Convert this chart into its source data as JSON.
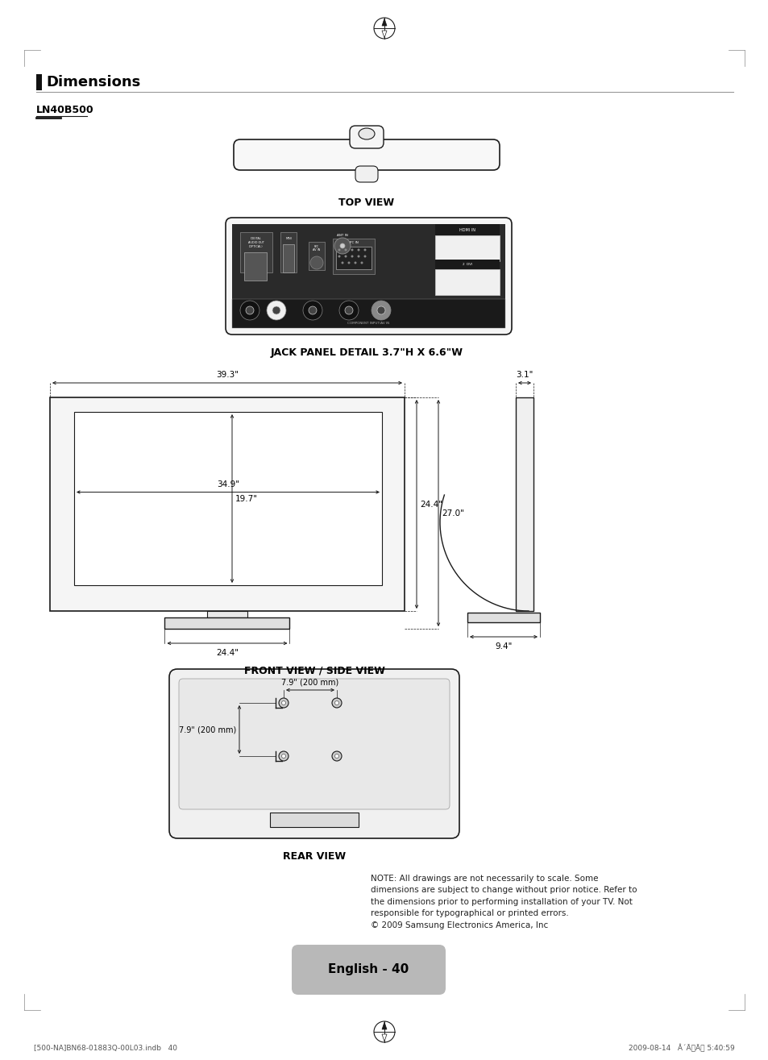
{
  "bg_color": "#ffffff",
  "title": "Dimensions",
  "subtitle": "LN40B500",
  "page_label": "English - 40",
  "footer_left": "[500-NA]BN68-01883Q-00L03.indb   40",
  "footer_right": "2009-08-14   Â´ÃÃ 5:40:59",
  "jack_panel_label": "JACK PANEL DETAIL 3.7\"H X 6.6\"W",
  "front_side_label": "FRONT VIEW / SIDE VIEW",
  "rear_label": "REAR VIEW",
  "top_label": "TOP VIEW",
  "note_text": "NOTE: All drawings are not necessarily to scale. Some\ndimensions are subject to change without prior notice. Refer to\nthe dimensions prior to performing installation of your TV. Not\nresponsible for typographical or printed errors.\n© 2009 Samsung Electronics America, Inc",
  "dims": {
    "total_width": "39.3\"",
    "screen_width": "34.9\"",
    "screen_height": "19.7\"",
    "panel_height_inner": "24.4\"",
    "panel_height_outer": "27.0\"",
    "base_width": "24.4\"",
    "depth": "3.1\"",
    "base_depth": "9.4\"",
    "vesa_h": "7.9\" (200 mm)",
    "vesa_v": "7.9\" (200 mm)"
  }
}
